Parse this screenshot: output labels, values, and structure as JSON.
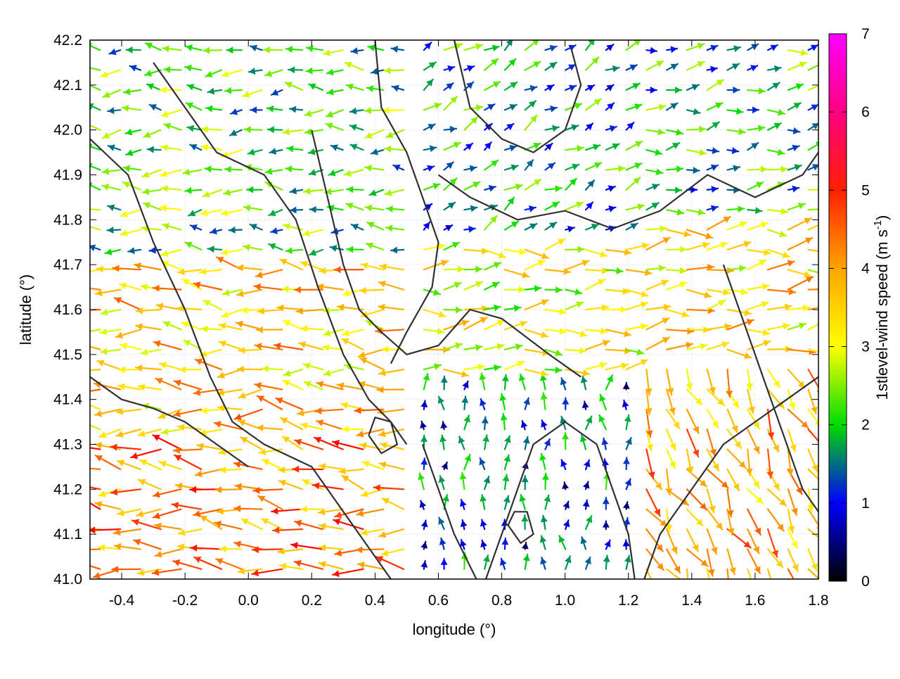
{
  "chart_data": {
    "type": "vector-field",
    "xlabel": "longitude (°)",
    "ylabel": "latitude (°)",
    "xlim": [
      -0.5,
      1.8
    ],
    "ylim": [
      41.0,
      42.2
    ],
    "xticks": [
      -0.4,
      -0.2,
      0.0,
      0.2,
      0.4,
      0.6,
      0.8,
      1.0,
      1.2,
      1.4,
      1.6,
      1.8
    ],
    "xtick_labels": [
      "-0.4",
      "-0.2",
      "0.0",
      "0.2",
      "0.4",
      "0.6",
      "0.8",
      "1.0",
      "1.2",
      "1.4",
      "1.6",
      "1.8"
    ],
    "yticks": [
      41.0,
      41.1,
      41.2,
      41.3,
      41.4,
      41.5,
      41.6,
      41.7,
      41.8,
      41.9,
      42.0,
      42.1,
      42.2
    ],
    "ytick_labels": [
      "41.0",
      "41.1",
      "41.2",
      "41.3",
      "41.4",
      "41.5",
      "41.6",
      "41.7",
      "41.8",
      "41.9",
      "42.0",
      "42.1",
      "42.2"
    ],
    "grid": true,
    "colorbar": {
      "label_main": "1stlevel-wind speed (m s",
      "label_sup": "-1",
      "label_end": ")",
      "range": [
        0,
        7
      ],
      "ticks": [
        0,
        1,
        2,
        3,
        4,
        5,
        6,
        7
      ],
      "tick_labels": [
        "0",
        "1",
        "2",
        "3",
        "4",
        "5",
        "6",
        "7"
      ],
      "stops": [
        "#000000",
        "#0000ff",
        "#00dd00",
        "#ffff00",
        "#ffa500",
        "#ff0000",
        "#ff00ff"
      ]
    },
    "contour_color": "#303030",
    "zones": [
      {
        "lon": [
          -0.5,
          0.5
        ],
        "lat": [
          41.7,
          42.2
        ],
        "speed": 2.5,
        "dir": 180
      },
      {
        "lon": [
          -0.5,
          0.5
        ],
        "lat": [
          41.3,
          41.7
        ],
        "speed": 4.2,
        "dir": 176
      },
      {
        "lon": [
          -0.5,
          0.5
        ],
        "lat": [
          41.0,
          41.3
        ],
        "speed": 4.8,
        "dir": 172
      },
      {
        "lon": [
          0.5,
          1.2
        ],
        "lat": [
          41.75,
          42.2
        ],
        "speed": 2.0,
        "dir": 30
      },
      {
        "lon": [
          0.5,
          1.2
        ],
        "lat": [
          41.45,
          41.75
        ],
        "speed": 3.5,
        "dir": 5
      },
      {
        "lon": [
          0.5,
          1.2
        ],
        "lat": [
          41.0,
          41.45
        ],
        "speed": 1.5,
        "dir": 90
      },
      {
        "lon": [
          1.2,
          1.8
        ],
        "lat": [
          41.8,
          42.2
        ],
        "speed": 2.2,
        "dir": 10
      },
      {
        "lon": [
          1.2,
          1.8
        ],
        "lat": [
          41.5,
          41.8
        ],
        "speed": 4.0,
        "dir": 5
      },
      {
        "lon": [
          1.2,
          1.8
        ],
        "lat": [
          41.0,
          41.5
        ],
        "speed": 4.5,
        "dir": 300
      }
    ],
    "contours": [
      [
        [
          -0.5,
          41.98
        ],
        [
          -0.38,
          41.9
        ],
        [
          -0.3,
          41.75
        ],
        [
          -0.2,
          41.6
        ],
        [
          -0.12,
          41.45
        ],
        [
          -0.05,
          41.35
        ],
        [
          0.05,
          41.3
        ],
        [
          0.2,
          41.25
        ],
        [
          0.3,
          41.15
        ],
        [
          0.4,
          41.05
        ],
        [
          0.45,
          41.0
        ]
      ],
      [
        [
          -0.3,
          42.15
        ],
        [
          -0.2,
          42.05
        ],
        [
          -0.1,
          41.95
        ],
        [
          0.05,
          41.9
        ],
        [
          0.15,
          41.8
        ],
        [
          0.22,
          41.65
        ],
        [
          0.3,
          41.5
        ],
        [
          0.38,
          41.4
        ],
        [
          0.45,
          41.35
        ],
        [
          0.5,
          41.3
        ]
      ],
      [
        [
          0.4,
          42.2
        ],
        [
          0.42,
          42.05
        ],
        [
          0.5,
          41.95
        ],
        [
          0.55,
          41.85
        ],
        [
          0.6,
          41.75
        ],
        [
          0.58,
          41.65
        ],
        [
          0.5,
          41.55
        ],
        [
          0.45,
          41.48
        ]
      ],
      [
        [
          0.65,
          42.2
        ],
        [
          0.7,
          42.05
        ],
        [
          0.8,
          41.98
        ],
        [
          0.9,
          41.95
        ],
        [
          1.0,
          42.0
        ],
        [
          1.05,
          42.1
        ],
        [
          1.02,
          42.18
        ]
      ],
      [
        [
          0.6,
          41.9
        ],
        [
          0.7,
          41.85
        ],
        [
          0.85,
          41.8
        ],
        [
          1.0,
          41.82
        ],
        [
          1.15,
          41.78
        ],
        [
          1.3,
          41.82
        ],
        [
          1.45,
          41.9
        ],
        [
          1.6,
          41.85
        ],
        [
          1.75,
          41.9
        ],
        [
          1.8,
          41.95
        ]
      ],
      [
        [
          0.55,
          41.3
        ],
        [
          0.6,
          41.2
        ],
        [
          0.65,
          41.1
        ],
        [
          0.72,
          41.0
        ]
      ],
      [
        [
          0.75,
          41.0
        ],
        [
          0.8,
          41.1
        ],
        [
          0.85,
          41.2
        ],
        [
          0.9,
          41.3
        ],
        [
          1.0,
          41.35
        ],
        [
          1.1,
          41.3
        ],
        [
          1.15,
          41.2
        ],
        [
          1.2,
          41.1
        ],
        [
          1.22,
          41.0
        ]
      ],
      [
        [
          1.25,
          41.0
        ],
        [
          1.3,
          41.1
        ],
        [
          1.4,
          41.2
        ],
        [
          1.5,
          41.3
        ],
        [
          1.6,
          41.35
        ],
        [
          1.7,
          41.4
        ],
        [
          1.8,
          41.45
        ]
      ],
      [
        [
          1.5,
          41.7
        ],
        [
          1.55,
          41.6
        ],
        [
          1.6,
          41.5
        ],
        [
          1.65,
          41.4
        ],
        [
          1.7,
          41.3
        ],
        [
          1.75,
          41.2
        ],
        [
          1.8,
          41.15
        ]
      ],
      [
        [
          -0.5,
          41.45
        ],
        [
          -0.4,
          41.4
        ],
        [
          -0.3,
          41.38
        ],
        [
          -0.2,
          41.35
        ],
        [
          -0.1,
          41.3
        ],
        [
          0.0,
          41.25
        ]
      ],
      [
        [
          0.38,
          41.32
        ],
        [
          0.42,
          41.28
        ],
        [
          0.47,
          41.3
        ],
        [
          0.45,
          41.35
        ],
        [
          0.4,
          41.36
        ],
        [
          0.38,
          41.32
        ]
      ],
      [
        [
          0.82,
          41.12
        ],
        [
          0.86,
          41.08
        ],
        [
          0.9,
          41.1
        ],
        [
          0.88,
          41.15
        ],
        [
          0.84,
          41.15
        ],
        [
          0.82,
          41.12
        ]
      ],
      [
        [
          0.2,
          42.0
        ],
        [
          0.25,
          41.85
        ],
        [
          0.3,
          41.7
        ],
        [
          0.35,
          41.6
        ],
        [
          0.42,
          41.55
        ],
        [
          0.5,
          41.5
        ],
        [
          0.6,
          41.52
        ],
        [
          0.7,
          41.6
        ],
        [
          0.8,
          41.58
        ],
        [
          0.95,
          41.5
        ],
        [
          1.05,
          41.45
        ]
      ]
    ]
  }
}
